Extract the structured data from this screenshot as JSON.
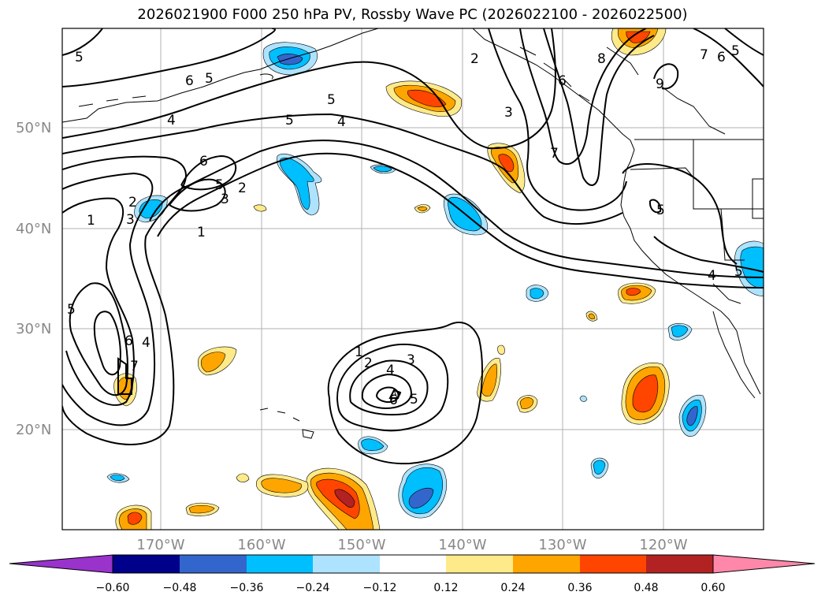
{
  "title": "2026021900 F000 250 hPa PV, Rossby Wave PC (2026022100 - 2026022500)",
  "lat_labels": [
    "50°N",
    "40°N",
    "30°N",
    "20°N"
  ],
  "lon_labels": [
    "170°W",
    "160°W",
    "150°W",
    "140°W",
    "130°W",
    "120°W"
  ],
  "colorbar": {
    "levels": [
      -0.6,
      -0.48,
      -0.36,
      -0.24,
      -0.12,
      0.12,
      0.24,
      0.36,
      0.48,
      0.6
    ],
    "labels": [
      "−0.60",
      "−0.48",
      "−0.36",
      "−0.24",
      "−0.12",
      "0.12",
      "0.24",
      "0.36",
      "0.48",
      "0.60"
    ],
    "colors": [
      "#9933cc",
      "#00008b",
      "#3366cc",
      "#00bfff",
      "#aee3ff",
      "#ffffff",
      "#ffea8a",
      "#ffa500",
      "#ff4500",
      "#b22222",
      "#ff88aa"
    ]
  },
  "contour_labels": [
    "1",
    "2",
    "3",
    "4",
    "5",
    "6",
    "7",
    "8",
    "9"
  ],
  "colors": {
    "neg_light": "#aee3ff",
    "neg_mid": "#00bfff",
    "neg_strong": "#3366cc",
    "neg_deep": "#00008b",
    "pos_light": "#ffea8a",
    "pos_mid": "#ffa500",
    "pos_strong": "#ff4500",
    "pos_deep": "#b22222"
  }
}
